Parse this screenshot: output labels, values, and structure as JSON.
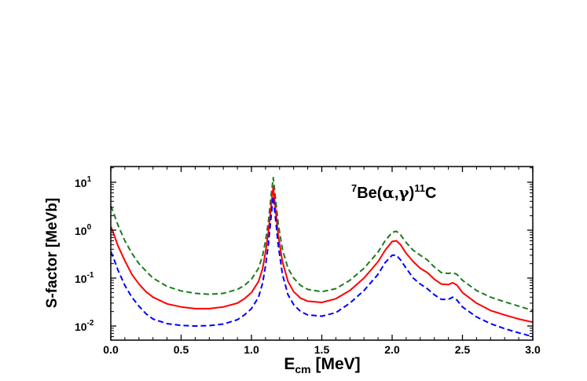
{
  "chart_data": {
    "type": "line",
    "title": "",
    "annotation": {
      "pre_sup": "7",
      "main": "Be(",
      "alpha": "α",
      "comma": ",",
      "gamma": "γ",
      "close": ")",
      "post_sup": "11",
      "end": "C"
    },
    "xlabel": {
      "main": "E",
      "sub": "cm",
      "unit": " [MeV]"
    },
    "ylabel": "S-factor [MeVb]",
    "xlim": [
      0.0,
      3.0
    ],
    "ylim": [
      0.005,
      20
    ],
    "yscale": "log",
    "grid": false,
    "x_ticks": [
      "0.0",
      "0.5",
      "1.0",
      "1.5",
      "2.0",
      "2.5",
      "3.0"
    ],
    "y_ticks": [
      {
        "base": "10",
        "exp": "1"
      },
      {
        "base": "10",
        "exp": "0"
      },
      {
        "base": "10",
        "exp": "-1"
      },
      {
        "base": "10",
        "exp": "-2"
      }
    ],
    "series": [
      {
        "color": "#1f7a1f",
        "style": "dashed",
        "points": [
          [
            0.0,
            3.2
          ],
          [
            0.02,
            2.3
          ],
          [
            0.05,
            1.3
          ],
          [
            0.1,
            0.6
          ],
          [
            0.15,
            0.33
          ],
          [
            0.2,
            0.2
          ],
          [
            0.25,
            0.14
          ],
          [
            0.3,
            0.1
          ],
          [
            0.4,
            0.067
          ],
          [
            0.5,
            0.054
          ],
          [
            0.6,
            0.048
          ],
          [
            0.7,
            0.046
          ],
          [
            0.8,
            0.048
          ],
          [
            0.9,
            0.058
          ],
          [
            0.95,
            0.07
          ],
          [
            1.0,
            0.095
          ],
          [
            1.05,
            0.16
          ],
          [
            1.08,
            0.3
          ],
          [
            1.1,
            0.6
          ],
          [
            1.12,
            1.5
          ],
          [
            1.14,
            5.5
          ],
          [
            1.155,
            12.5
          ],
          [
            1.17,
            5.0
          ],
          [
            1.19,
            1.4
          ],
          [
            1.22,
            0.4
          ],
          [
            1.26,
            0.16
          ],
          [
            1.3,
            0.1
          ],
          [
            1.35,
            0.07
          ],
          [
            1.4,
            0.058
          ],
          [
            1.5,
            0.052
          ],
          [
            1.6,
            0.06
          ],
          [
            1.7,
            0.09
          ],
          [
            1.8,
            0.16
          ],
          [
            1.9,
            0.35
          ],
          [
            1.95,
            0.6
          ],
          [
            2.0,
            0.9
          ],
          [
            2.03,
            0.95
          ],
          [
            2.06,
            0.8
          ],
          [
            2.1,
            0.55
          ],
          [
            2.15,
            0.38
          ],
          [
            2.2,
            0.3
          ],
          [
            2.25,
            0.24
          ],
          [
            2.3,
            0.17
          ],
          [
            2.35,
            0.13
          ],
          [
            2.4,
            0.125
          ],
          [
            2.43,
            0.13
          ],
          [
            2.46,
            0.12
          ],
          [
            2.5,
            0.09
          ],
          [
            2.6,
            0.055
          ],
          [
            2.7,
            0.04
          ],
          [
            2.8,
            0.032
          ],
          [
            2.9,
            0.026
          ],
          [
            3.0,
            0.021
          ]
        ]
      },
      {
        "color": "#ff0000",
        "style": "solid",
        "points": [
          [
            0.0,
            1.2
          ],
          [
            0.02,
            0.85
          ],
          [
            0.05,
            0.48
          ],
          [
            0.1,
            0.23
          ],
          [
            0.15,
            0.12
          ],
          [
            0.2,
            0.075
          ],
          [
            0.25,
            0.052
          ],
          [
            0.3,
            0.04
          ],
          [
            0.4,
            0.029
          ],
          [
            0.5,
            0.025
          ],
          [
            0.6,
            0.023
          ],
          [
            0.7,
            0.023
          ],
          [
            0.8,
            0.025
          ],
          [
            0.9,
            0.03
          ],
          [
            0.95,
            0.037
          ],
          [
            1.0,
            0.05
          ],
          [
            1.05,
            0.085
          ],
          [
            1.08,
            0.16
          ],
          [
            1.1,
            0.35
          ],
          [
            1.12,
            0.9
          ],
          [
            1.14,
            3.2
          ],
          [
            1.155,
            8.0
          ],
          [
            1.17,
            3.0
          ],
          [
            1.19,
            0.8
          ],
          [
            1.22,
            0.22
          ],
          [
            1.26,
            0.085
          ],
          [
            1.3,
            0.052
          ],
          [
            1.35,
            0.038
          ],
          [
            1.4,
            0.033
          ],
          [
            1.5,
            0.031
          ],
          [
            1.6,
            0.037
          ],
          [
            1.7,
            0.055
          ],
          [
            1.8,
            0.1
          ],
          [
            1.9,
            0.22
          ],
          [
            1.95,
            0.38
          ],
          [
            2.0,
            0.58
          ],
          [
            2.03,
            0.6
          ],
          [
            2.06,
            0.5
          ],
          [
            2.1,
            0.33
          ],
          [
            2.15,
            0.22
          ],
          [
            2.2,
            0.16
          ],
          [
            2.25,
            0.13
          ],
          [
            2.3,
            0.095
          ],
          [
            2.35,
            0.075
          ],
          [
            2.4,
            0.073
          ],
          [
            2.43,
            0.08
          ],
          [
            2.46,
            0.072
          ],
          [
            2.5,
            0.05
          ],
          [
            2.6,
            0.03
          ],
          [
            2.7,
            0.021
          ],
          [
            2.8,
            0.017
          ],
          [
            2.9,
            0.014
          ],
          [
            3.0,
            0.012
          ]
        ]
      },
      {
        "color": "#0000ff",
        "style": "dashed",
        "points": [
          [
            0.0,
            0.36
          ],
          [
            0.02,
            0.26
          ],
          [
            0.05,
            0.15
          ],
          [
            0.1,
            0.07
          ],
          [
            0.15,
            0.04
          ],
          [
            0.2,
            0.026
          ],
          [
            0.25,
            0.018
          ],
          [
            0.3,
            0.014
          ],
          [
            0.4,
            0.0112
          ],
          [
            0.5,
            0.0103
          ],
          [
            0.6,
            0.01
          ],
          [
            0.7,
            0.0102
          ],
          [
            0.8,
            0.011
          ],
          [
            0.9,
            0.0135
          ],
          [
            0.95,
            0.017
          ],
          [
            1.0,
            0.023
          ],
          [
            1.05,
            0.04
          ],
          [
            1.08,
            0.08
          ],
          [
            1.1,
            0.18
          ],
          [
            1.12,
            0.5
          ],
          [
            1.14,
            2.0
          ],
          [
            1.155,
            5.0
          ],
          [
            1.17,
            1.9
          ],
          [
            1.19,
            0.5
          ],
          [
            1.22,
            0.12
          ],
          [
            1.26,
            0.045
          ],
          [
            1.3,
            0.028
          ],
          [
            1.35,
            0.02
          ],
          [
            1.4,
            0.017
          ],
          [
            1.5,
            0.016
          ],
          [
            1.6,
            0.019
          ],
          [
            1.7,
            0.03
          ],
          [
            1.8,
            0.055
          ],
          [
            1.9,
            0.12
          ],
          [
            1.95,
            0.21
          ],
          [
            2.0,
            0.3
          ],
          [
            2.03,
            0.3
          ],
          [
            2.06,
            0.24
          ],
          [
            2.1,
            0.16
          ],
          [
            2.15,
            0.1
          ],
          [
            2.2,
            0.075
          ],
          [
            2.25,
            0.06
          ],
          [
            2.3,
            0.045
          ],
          [
            2.35,
            0.036
          ],
          [
            2.4,
            0.036
          ],
          [
            2.43,
            0.04
          ],
          [
            2.46,
            0.035
          ],
          [
            2.5,
            0.025
          ],
          [
            2.6,
            0.0155
          ],
          [
            2.7,
            0.0112
          ],
          [
            2.8,
            0.0088
          ],
          [
            2.9,
            0.0072
          ],
          [
            3.0,
            0.006
          ]
        ]
      }
    ]
  }
}
